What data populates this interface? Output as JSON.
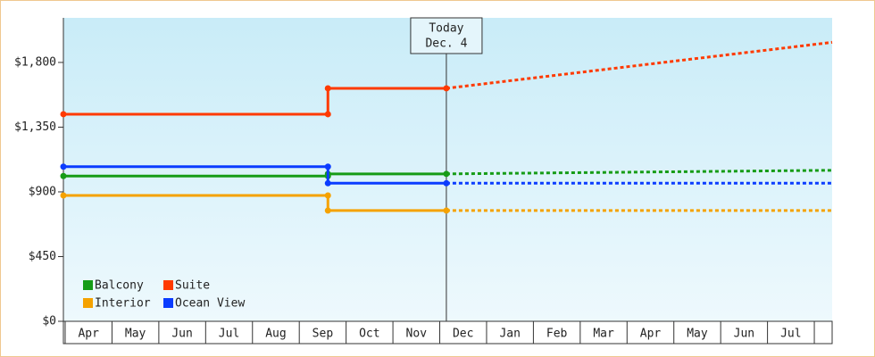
{
  "chart_data": {
    "type": "line",
    "categories": [
      "Apr",
      "May",
      "Jun",
      "Jul",
      "Aug",
      "Sep",
      "Oct",
      "Nov",
      "Dec",
      "Jan",
      "Feb",
      "Mar",
      "Apr",
      "May",
      "Jun",
      "Jul"
    ],
    "xlim": [
      -0.04,
      16.38
    ],
    "ylim": [
      0,
      2110
    ],
    "yticks": [
      {
        "value": 0,
        "label": "$0"
      },
      {
        "value": 450,
        "label": "$450"
      },
      {
        "value": 900,
        "label": "$900"
      },
      {
        "value": 1350,
        "label": "$1,350"
      },
      {
        "value": 1800,
        "label": "$1,800"
      }
    ],
    "today": {
      "label": "Today",
      "date": "Dec. 4",
      "x": 8.14
    },
    "legend": "bottom-left",
    "series": [
      {
        "name": "Balcony",
        "color": "#169c16",
        "x": [
          -0.04,
          5.61,
          5.61,
          8.14,
          16.38
        ],
        "values": [
          1010,
          1010,
          1025,
          1025,
          1050
        ]
      },
      {
        "name": "Suite",
        "color": "#ff3a00",
        "x": [
          -0.04,
          5.61,
          5.61,
          8.14,
          16.38
        ],
        "values": [
          1440,
          1440,
          1620,
          1620,
          1940
        ]
      },
      {
        "name": "Interior",
        "color": "#f5a200",
        "x": [
          -0.04,
          5.61,
          5.61,
          8.14,
          16.38
        ],
        "values": [
          875,
          875,
          770,
          770,
          770
        ]
      },
      {
        "name": "Ocean View",
        "color": "#0b3cff",
        "x": [
          -0.04,
          5.61,
          5.61,
          8.14,
          16.38
        ],
        "values": [
          1075,
          1075,
          960,
          960,
          960
        ]
      }
    ]
  }
}
